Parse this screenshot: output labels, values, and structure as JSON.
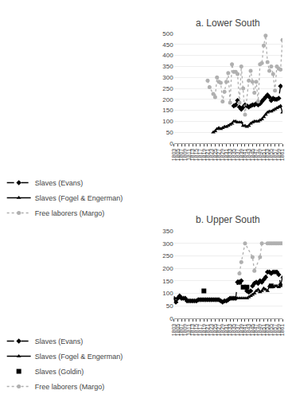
{
  "chart_data": [
    {
      "type": "line",
      "title": "a. Lower South",
      "xlim": [
        1803,
        1861
      ],
      "xticks": [
        1803,
        1805,
        1807,
        1809,
        1811,
        1813,
        1815,
        1817,
        1819,
        1821,
        1823,
        1825,
        1827,
        1829,
        1831,
        1833,
        1835,
        1837,
        1839,
        1841,
        1843,
        1845,
        1847,
        1849,
        1851,
        1853,
        1855,
        1857,
        1859,
        1861
      ],
      "ylim": [
        0,
        500
      ],
      "yticks": [
        0,
        50,
        100,
        150,
        200,
        250,
        300,
        350,
        400,
        450,
        500
      ],
      "grid": "y",
      "legend": "bottom",
      "series": [
        {
          "name": "Slaves (Evans)",
          "type": "line",
          "color": "#000000",
          "marker": "diamond",
          "line_style": "dash",
          "x": [
            1835,
            1836,
            1837,
            1838,
            1839,
            1840,
            1841,
            1842,
            1843,
            1844,
            1845,
            1846,
            1847,
            1848,
            1849,
            1850,
            1851,
            1852,
            1853,
            1854,
            1855,
            1856,
            1857,
            1858,
            1859,
            1860
          ],
          "values": [
            170,
            175,
            195,
            165,
            155,
            165,
            175,
            170,
            165,
            170,
            175,
            175,
            180,
            175,
            180,
            190,
            200,
            210,
            220,
            210,
            195,
            205,
            200,
            200,
            205,
            260
          ]
        },
        {
          "name": "Slaves (Fogel & Engerman)",
          "type": "line",
          "color": "#000000",
          "marker": "triangle-up",
          "line_style": "solid",
          "x": [
            1824,
            1825,
            1826,
            1827,
            1828,
            1829,
            1830,
            1831,
            1832,
            1833,
            1834,
            1835,
            1836,
            1837,
            1838,
            1839,
            1840,
            1841,
            1842,
            1843,
            1844,
            1845,
            1846,
            1847,
            1848,
            1849,
            1850,
            1851,
            1852,
            1853,
            1854,
            1855,
            1856,
            1857,
            1858,
            1859,
            1860,
            1861
          ],
          "values": [
            50,
            55,
            65,
            70,
            65,
            70,
            75,
            75,
            80,
            85,
            90,
            100,
            100,
            95,
            95,
            95,
            80,
            80,
            75,
            80,
            90,
            95,
            100,
            100,
            100,
            105,
            110,
            120,
            130,
            140,
            145,
            145,
            150,
            155,
            160,
            165,
            170,
            140
          ]
        },
        {
          "name": "Free laborers (Margo)",
          "type": "line",
          "color": "#b0b0b0",
          "marker": "circle",
          "line_style": "dot",
          "x": [
            1821,
            1822,
            1824,
            1825,
            1826,
            1827,
            1828,
            1829,
            1830,
            1831,
            1832,
            1833,
            1834,
            1835,
            1836,
            1837,
            1838,
            1839,
            1840,
            1841,
            1843,
            1844,
            1845,
            1846,
            1847,
            1848,
            1849,
            1850,
            1851,
            1852,
            1853,
            1854,
            1855,
            1856,
            1857,
            1858,
            1859,
            1860,
            1861
          ],
          "values": [
            285,
            255,
            225,
            210,
            300,
            280,
            275,
            190,
            235,
            280,
            320,
            185,
            360,
            325,
            325,
            315,
            185,
            350,
            250,
            130,
            285,
            330,
            280,
            230,
            280,
            190,
            360,
            365,
            445,
            490,
            370,
            330,
            350,
            315,
            240,
            350,
            340,
            335,
            470
          ]
        }
      ]
    },
    {
      "type": "line",
      "title": "b. Upper South",
      "xlim": [
        1803,
        1861
      ],
      "xticks": [
        1803,
        1805,
        1807,
        1809,
        1811,
        1813,
        1815,
        1817,
        1819,
        1821,
        1823,
        1825,
        1827,
        1829,
        1831,
        1833,
        1835,
        1837,
        1839,
        1841,
        1843,
        1845,
        1847,
        1849,
        1851,
        1853,
        1855,
        1857,
        1859,
        1861
      ],
      "ylim": [
        0,
        350
      ],
      "yticks": [
        0,
        50,
        100,
        150,
        200,
        250,
        300,
        350
      ],
      "grid": "y",
      "legend": "bottom",
      "series": [
        {
          "name": "Slaves (Evans)",
          "type": "line",
          "color": "#000000",
          "marker": "diamond",
          "line_style": "dash",
          "x": [
            1803,
            1804,
            1805,
            1806,
            1807,
            1808,
            1809,
            1810,
            1811,
            1812,
            1813,
            1814,
            1815,
            1816,
            1817,
            1818,
            1819,
            1820,
            1821,
            1822,
            1823,
            1824,
            1825,
            1826,
            1827,
            1828,
            1829,
            1830,
            1831,
            1832,
            1833,
            1834,
            1835,
            1836,
            1837,
            1838,
            1839,
            1841,
            1842,
            1843,
            1844,
            1845,
            1846,
            1847,
            1848,
            1849,
            1850,
            1851,
            1852,
            1853,
            1854,
            1855,
            1856,
            1857,
            1858,
            1859,
            1860
          ],
          "values": [
            80,
            65,
            80,
            90,
            80,
            80,
            80,
            70,
            70,
            70,
            70,
            70,
            70,
            75,
            75,
            75,
            75,
            75,
            75,
            75,
            75,
            75,
            75,
            75,
            75,
            70,
            65,
            70,
            70,
            75,
            80,
            80,
            80,
            80,
            145,
            145,
            150,
            125,
            110,
            105,
            110,
            130,
            140,
            145,
            140,
            150,
            145,
            155,
            165,
            185,
            185,
            180,
            185,
            185,
            185,
            175,
            135
          ]
        },
        {
          "name": "Slaves (Fogel & Engerman)",
          "type": "line",
          "color": "#000000",
          "marker": "triangle-up",
          "line_style": "solid",
          "x": [
            1803,
            1804,
            1805,
            1806,
            1807,
            1808,
            1809,
            1810,
            1811,
            1812,
            1813,
            1814,
            1815,
            1816,
            1817,
            1818,
            1819,
            1820,
            1821,
            1822,
            1823,
            1824,
            1825,
            1826,
            1827,
            1828,
            1829,
            1830,
            1831,
            1832,
            1833,
            1834,
            1835,
            1836,
            1837,
            1838,
            1839,
            1840,
            1841,
            1842,
            1843,
            1844,
            1845,
            1846,
            1847,
            1848,
            1849,
            1850,
            1851,
            1852,
            1853,
            1854,
            1855,
            1856,
            1857,
            1858,
            1859,
            1860,
            1861
          ],
          "values": [
            80,
            65,
            80,
            88,
            80,
            80,
            80,
            72,
            72,
            70,
            70,
            70,
            70,
            75,
            75,
            75,
            75,
            75,
            75,
            75,
            75,
            75,
            75,
            75,
            75,
            70,
            65,
            70,
            70,
            75,
            80,
            80,
            80,
            80,
            80,
            80,
            80,
            80,
            80,
            80,
            85,
            90,
            95,
            100,
            110,
            115,
            105,
            110,
            120,
            115,
            110,
            130,
            130,
            125,
            130,
            130,
            125,
            130,
            165
          ]
        },
        {
          "name": "Slaves (Goldin)",
          "type": "scatter",
          "color": "#000000",
          "marker": "square",
          "line_style": "none",
          "x": [
            1819,
            1838,
            1840,
            1842,
            1855
          ],
          "values": [
            110,
            145,
            125,
            125,
            130
          ]
        },
        {
          "name": "Free laborers (Margo)",
          "type": "line",
          "color": "#b0b0b0",
          "marker": "circle",
          "line_style": "dot",
          "x": [
            1838,
            1839,
            1841,
            1845,
            1846,
            1849,
            1850,
            1853,
            1854,
            1855,
            1856,
            1857,
            1858,
            1859,
            1860,
            1861
          ],
          "values": [
            180,
            225,
            300,
            245,
            190,
            245,
            300,
            300,
            300,
            300,
            300,
            300,
            300,
            300,
            300,
            300
          ]
        }
      ]
    }
  ]
}
